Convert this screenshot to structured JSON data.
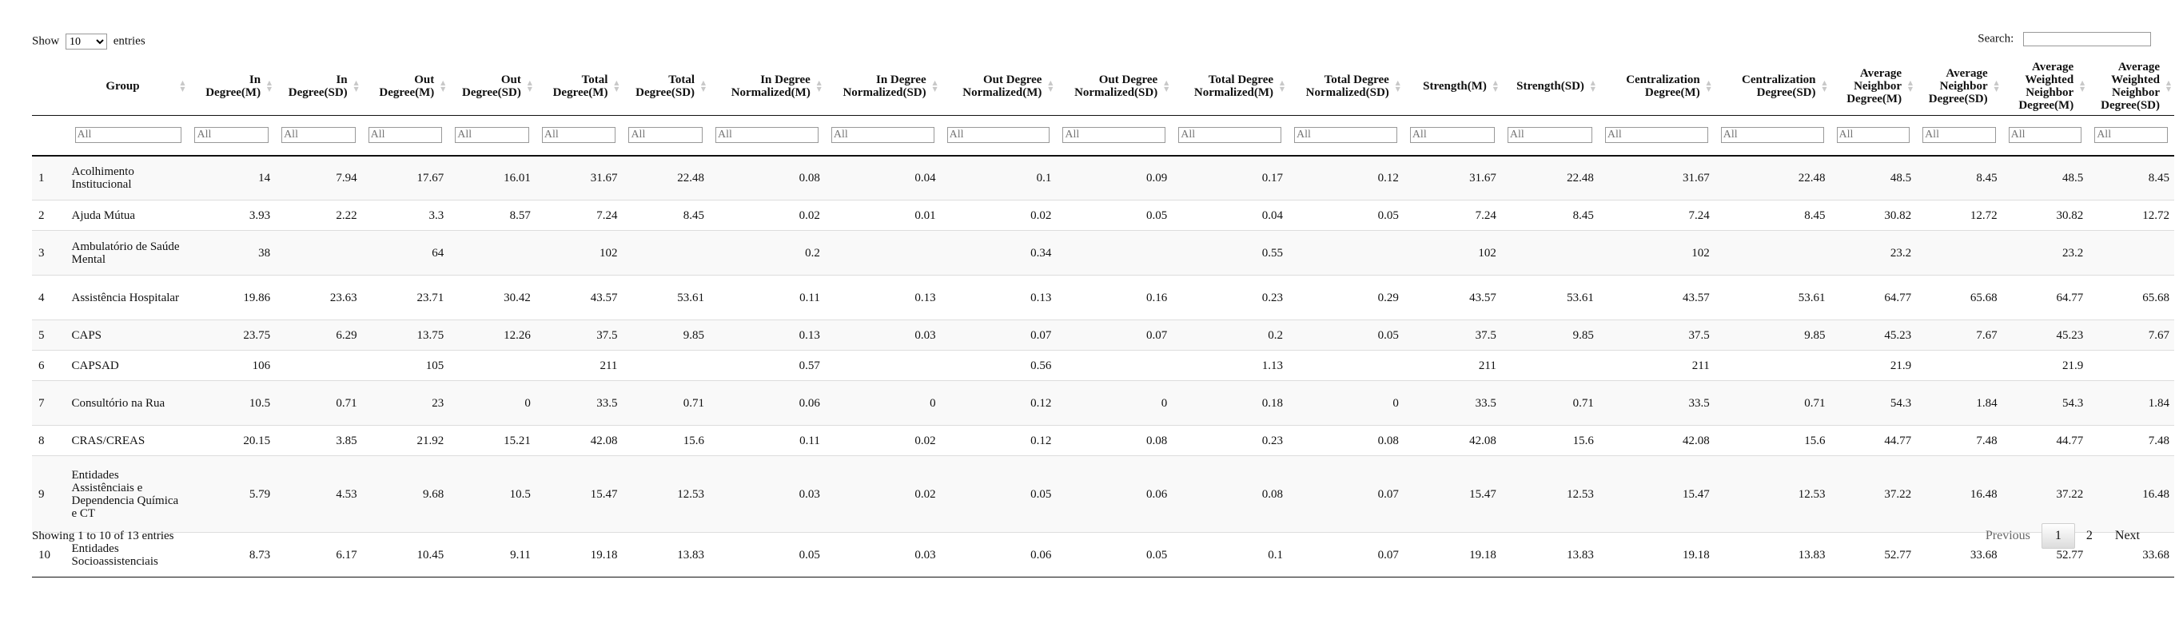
{
  "length_control": {
    "prefix": "Show",
    "selected": "10",
    "suffix": "entries"
  },
  "search": {
    "label": "Search:",
    "value": ""
  },
  "columns": [
    "Group",
    "In Degree(M)",
    "In Degree(SD)",
    "Out Degree(M)",
    "Out Degree(SD)",
    "Total Degree(M)",
    "Total Degree(SD)",
    "In Degree Normalized(M)",
    "In Degree Normalized(SD)",
    "Out Degree Normalized(M)",
    "Out Degree Normalized(SD)",
    "Total Degree Normalized(M)",
    "Total Degree Normalized(SD)",
    "Strength(M)",
    "Strength(SD)",
    "Centralization Degree(M)",
    "Centralization Degree(SD)",
    "Average Neighbor Degree(M)",
    "Average Neighbor Degree(SD)",
    "Average Weighted Neighbor Degree(M)",
    "Average Weighted Neighbor Degree(SD)"
  ],
  "filter_placeholder": "All",
  "rows": [
    [
      "1",
      "Acolhimento Institucional",
      "14",
      "7.94",
      "17.67",
      "16.01",
      "31.67",
      "22.48",
      "0.08",
      "0.04",
      "0.1",
      "0.09",
      "0.17",
      "0.12",
      "31.67",
      "22.48",
      "31.67",
      "22.48",
      "48.5",
      "8.45",
      "48.5",
      "8.45"
    ],
    [
      "2",
      "Ajuda Mútua",
      "3.93",
      "2.22",
      "3.3",
      "8.57",
      "7.24",
      "8.45",
      "0.02",
      "0.01",
      "0.02",
      "0.05",
      "0.04",
      "0.05",
      "7.24",
      "8.45",
      "7.24",
      "8.45",
      "30.82",
      "12.72",
      "30.82",
      "12.72"
    ],
    [
      "3",
      "Ambulatório de Saúde Mental",
      "38",
      "",
      "64",
      "",
      "102",
      "",
      "0.2",
      "",
      "0.34",
      "",
      "0.55",
      "",
      "102",
      "",
      "102",
      "",
      "23.2",
      "",
      "23.2",
      ""
    ],
    [
      "4",
      "Assistência Hospitalar",
      "19.86",
      "23.63",
      "23.71",
      "30.42",
      "43.57",
      "53.61",
      "0.11",
      "0.13",
      "0.13",
      "0.16",
      "0.23",
      "0.29",
      "43.57",
      "53.61",
      "43.57",
      "53.61",
      "64.77",
      "65.68",
      "64.77",
      "65.68"
    ],
    [
      "5",
      "CAPS",
      "23.75",
      "6.29",
      "13.75",
      "12.26",
      "37.5",
      "9.85",
      "0.13",
      "0.03",
      "0.07",
      "0.07",
      "0.2",
      "0.05",
      "37.5",
      "9.85",
      "37.5",
      "9.85",
      "45.23",
      "7.67",
      "45.23",
      "7.67"
    ],
    [
      "6",
      "CAPSAD",
      "106",
      "",
      "105",
      "",
      "211",
      "",
      "0.57",
      "",
      "0.56",
      "",
      "1.13",
      "",
      "211",
      "",
      "211",
      "",
      "21.9",
      "",
      "21.9",
      ""
    ],
    [
      "7",
      "Consultório na Rua",
      "10.5",
      "0.71",
      "23",
      "0",
      "33.5",
      "0.71",
      "0.06",
      "0",
      "0.12",
      "0",
      "0.18",
      "0",
      "33.5",
      "0.71",
      "33.5",
      "0.71",
      "54.3",
      "1.84",
      "54.3",
      "1.84"
    ],
    [
      "8",
      "CRAS/CREAS",
      "20.15",
      "3.85",
      "21.92",
      "15.21",
      "42.08",
      "15.6",
      "0.11",
      "0.02",
      "0.12",
      "0.08",
      "0.23",
      "0.08",
      "42.08",
      "15.6",
      "42.08",
      "15.6",
      "44.77",
      "7.48",
      "44.77",
      "7.48"
    ],
    [
      "9",
      "Entidades Assistênciais e Dependencia Química e CT",
      "5.79",
      "4.53",
      "9.68",
      "10.5",
      "15.47",
      "12.53",
      "0.03",
      "0.02",
      "0.05",
      "0.06",
      "0.08",
      "0.07",
      "15.47",
      "12.53",
      "15.47",
      "12.53",
      "37.22",
      "16.48",
      "37.22",
      "16.48"
    ],
    [
      "10",
      "Entidades Socioassistenciais",
      "8.73",
      "6.17",
      "10.45",
      "9.11",
      "19.18",
      "13.83",
      "0.05",
      "0.03",
      "0.06",
      "0.05",
      "0.1",
      "0.07",
      "19.18",
      "13.83",
      "19.18",
      "13.83",
      "52.77",
      "33.68",
      "52.77",
      "33.68"
    ]
  ],
  "info": "Showing 1 to 10 of 13 entries",
  "pagination": {
    "previous": "Previous",
    "pages": [
      "1",
      "2"
    ],
    "current": "1",
    "next": "Next"
  }
}
